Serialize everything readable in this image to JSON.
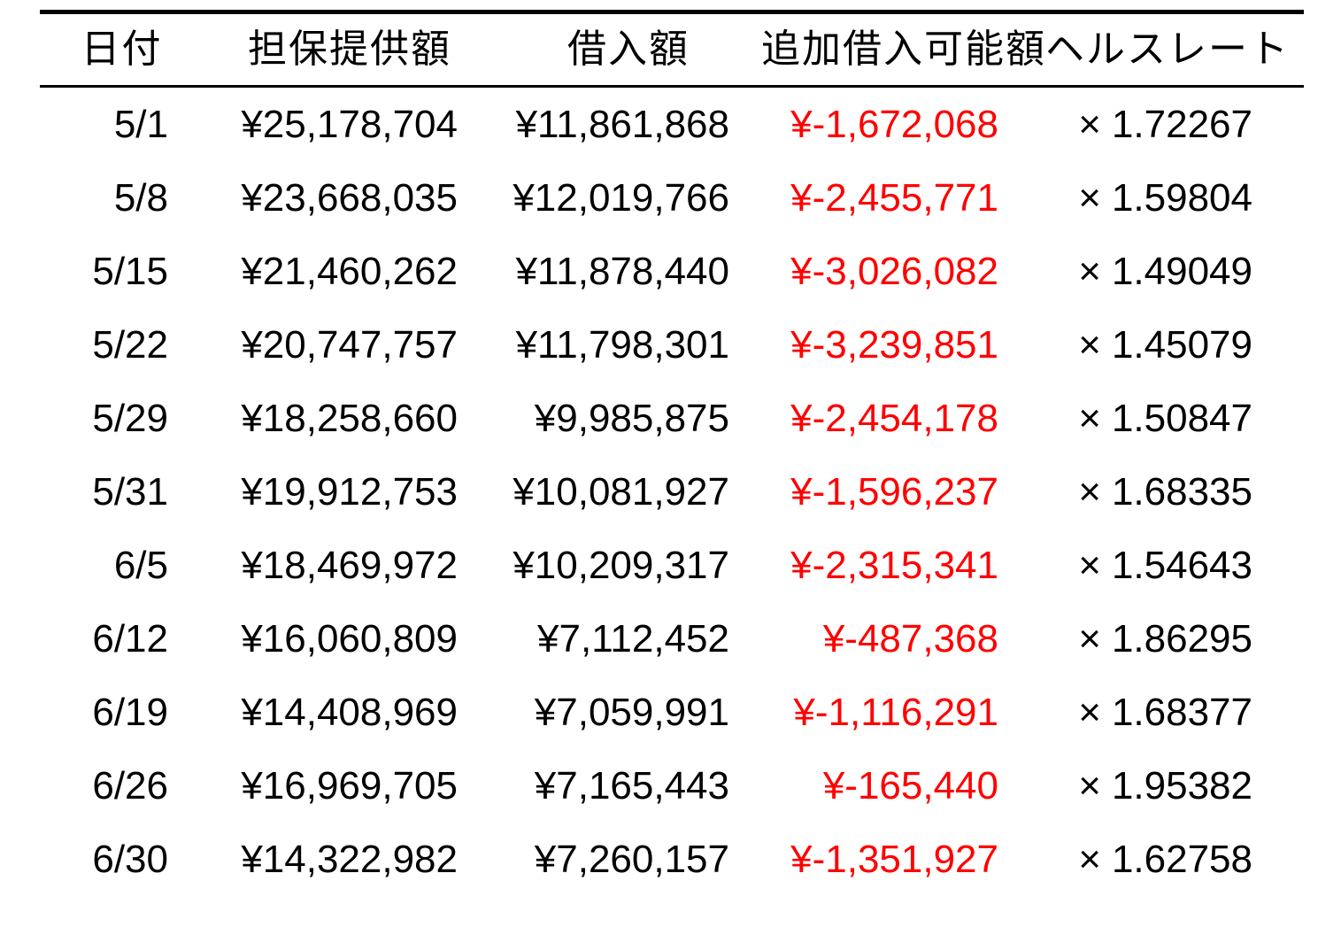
{
  "table": {
    "multiply_prefix": "×",
    "negative_color": "#ff0000",
    "columns": [
      {
        "key": "date",
        "label": "日付"
      },
      {
        "key": "collateral",
        "label": "担保提供額"
      },
      {
        "key": "borrowed",
        "label": "借入額"
      },
      {
        "key": "additional",
        "label": "追加借入可能額"
      },
      {
        "key": "health",
        "label": "ヘルスレート"
      }
    ],
    "rows": [
      {
        "date": "5/1",
        "collateral": "¥25,178,704",
        "borrowed": "¥11,861,868",
        "additional": "¥-1,672,068",
        "health": "1.72267"
      },
      {
        "date": "5/8",
        "collateral": "¥23,668,035",
        "borrowed": "¥12,019,766",
        "additional": "¥-2,455,771",
        "health": "1.59804"
      },
      {
        "date": "5/15",
        "collateral": "¥21,460,262",
        "borrowed": "¥11,878,440",
        "additional": "¥-3,026,082",
        "health": "1.49049"
      },
      {
        "date": "5/22",
        "collateral": "¥20,747,757",
        "borrowed": "¥11,798,301",
        "additional": "¥-3,239,851",
        "health": "1.45079"
      },
      {
        "date": "5/29",
        "collateral": "¥18,258,660",
        "borrowed": "¥9,985,875",
        "additional": "¥-2,454,178",
        "health": "1.50847"
      },
      {
        "date": "5/31",
        "collateral": "¥19,912,753",
        "borrowed": "¥10,081,927",
        "additional": "¥-1,596,237",
        "health": "1.68335"
      },
      {
        "date": "6/5",
        "collateral": "¥18,469,972",
        "borrowed": "¥10,209,317",
        "additional": "¥-2,315,341",
        "health": "1.54643"
      },
      {
        "date": "6/12",
        "collateral": "¥16,060,809",
        "borrowed": "¥7,112,452",
        "additional": "¥-487,368",
        "health": "1.86295"
      },
      {
        "date": "6/19",
        "collateral": "¥14,408,969",
        "borrowed": "¥7,059,991",
        "additional": "¥-1,116,291",
        "health": "1.68377"
      },
      {
        "date": "6/26",
        "collateral": "¥16,969,705",
        "borrowed": "¥7,165,443",
        "additional": "¥-165,440",
        "health": "1.95382"
      },
      {
        "date": "6/30",
        "collateral": "¥14,322,982",
        "borrowed": "¥7,260,157",
        "additional": "¥-1,351,927",
        "health": "1.62758"
      }
    ]
  },
  "chart_data": {
    "type": "table",
    "title": "",
    "columns": [
      "日付",
      "担保提供額",
      "借入額",
      "追加借入可能額",
      "ヘルスレート"
    ],
    "rows": [
      [
        "5/1",
        25178704,
        11861868,
        -1672068,
        1.72267
      ],
      [
        "5/8",
        23668035,
        12019766,
        -2455771,
        1.59804
      ],
      [
        "5/15",
        21460262,
        11878440,
        -3026082,
        1.49049
      ],
      [
        "5/22",
        20747757,
        11798301,
        -3239851,
        1.45079
      ],
      [
        "5/29",
        18258660,
        9985875,
        -2454178,
        1.50847
      ],
      [
        "5/31",
        19912753,
        10081927,
        -1596237,
        1.68335
      ],
      [
        "6/5",
        18469972,
        10209317,
        -2315341,
        1.54643
      ],
      [
        "6/12",
        16060809,
        7112452,
        -487368,
        1.86295
      ],
      [
        "6/19",
        14408969,
        7059991,
        -1116291,
        1.68377
      ],
      [
        "6/26",
        16969705,
        7165443,
        -165440,
        1.95382
      ],
      [
        "6/30",
        14322982,
        7260157,
        -1351927,
        1.62758
      ]
    ],
    "layout_hints": {
      "negative_values_color": "#ff0000",
      "currency": "JPY",
      "health_rate_prefix": "×",
      "rules": [
        "top",
        "below-header"
      ]
    }
  }
}
